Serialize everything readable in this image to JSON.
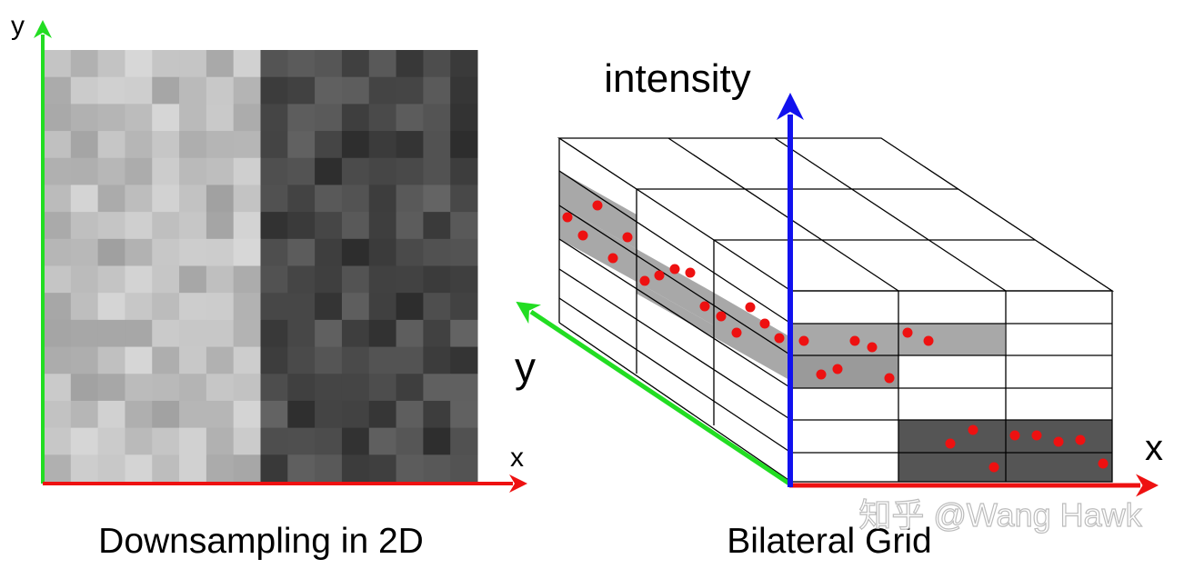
{
  "left_panel": {
    "caption": "Downsampling in 2D",
    "axis_x_label": "x",
    "axis_y_label": "y",
    "grid": {
      "columns": 16,
      "rows": 16,
      "light_range": [
        160,
        215
      ],
      "dark_range": [
        45,
        100
      ],
      "light_columns": 8
    }
  },
  "right_panel": {
    "caption": "Bilateral Grid",
    "axis_intensity_label": "intensity",
    "axis_x_label": "x",
    "axis_y_label": "y",
    "shaded_cell_colors": {
      "light": "#a8a8a8",
      "medium": "#9a9a9a",
      "dark": "#555555"
    },
    "point_color": "#ee1111"
  },
  "colors": {
    "x_axis": "#ee1111",
    "y_axis": "#22dd22",
    "intensity_axis": "#1111ee"
  },
  "watermark": "知乎 @Wang Hawk"
}
